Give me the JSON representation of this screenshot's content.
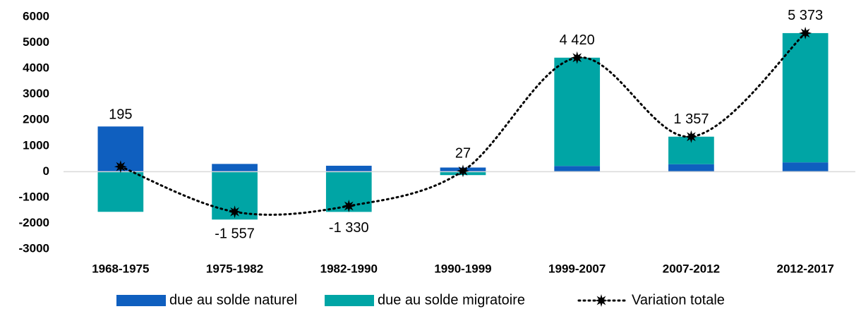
{
  "chart_data": {
    "type": "bar",
    "categories": [
      "1968-1975",
      "1975-1982",
      "1982-1990",
      "1990-1999",
      "1999-2007",
      "2007-2012",
      "2012-2017"
    ],
    "series": [
      {
        "name": "due au solde naturel",
        "color": "#0f5fbf",
        "values": [
          1752,
          300,
          230,
          160,
          220,
          290,
          360
        ]
      },
      {
        "name": "due au solde migratoire",
        "color": "#00a5a5",
        "values": [
          -1557,
          -1857,
          -1560,
          -133,
          4200,
          1067,
          5013
        ]
      },
      {
        "name": "Variation totale",
        "color": "#000000",
        "type": "line",
        "values": [
          195,
          -1557,
          -1330,
          27,
          4420,
          1357,
          5373
        ],
        "value_labels": [
          "195",
          "-1 557",
          "-1 330",
          "27",
          "4 420",
          "1 357",
          "5 373"
        ]
      }
    ],
    "ylim": [
      -3000,
      6000
    ],
    "yticks": [
      -3000,
      -2000,
      -1000,
      0,
      1000,
      2000,
      3000,
      4000,
      5000,
      6000
    ],
    "stacked": true,
    "legend": "bottom"
  }
}
